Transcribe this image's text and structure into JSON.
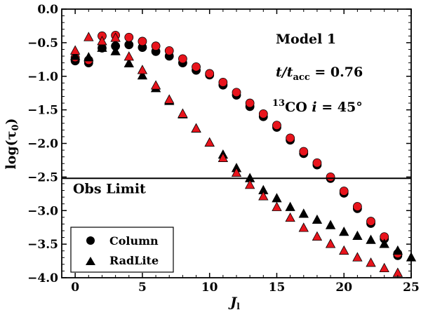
{
  "chart_data": {
    "type": "scatter",
    "xlabel": "J",
    "xlabel_sub": "l",
    "ylabel": "log(τ",
    "ylabel_sub": "0",
    "ylabel_end": ")",
    "xlim": [
      -1,
      25
    ],
    "ylim": [
      -4.0,
      0.0
    ],
    "xticks": [
      "0",
      "5",
      "10",
      "15",
      "20",
      "25"
    ],
    "xtick_values": [
      0,
      5,
      10,
      15,
      20,
      25
    ],
    "yticks": [
      "0.0",
      "−0.5",
      "−1.0",
      "−1.5",
      "−2.0",
      "−2.5",
      "−3.0",
      "−3.5",
      "−4.0"
    ],
    "ytick_values": [
      0.0,
      -0.5,
      -1.0,
      -1.5,
      -2.0,
      -2.5,
      -3.0,
      -3.5,
      -4.0
    ],
    "annotations": {
      "model": "Model 1",
      "time_t": "t/t",
      "time_sub": "acc",
      "time_val": " = 0.76",
      "isotope_sup": "13",
      "isotope": "CO ",
      "incl_i": "i",
      "incl_val": " = 45°"
    },
    "hline": {
      "y": -2.52,
      "label": "Obs Limit"
    },
    "legend": {
      "position": "bottom-left",
      "entries": [
        "Column",
        "RadLite"
      ]
    },
    "colors": {
      "black": "#000000",
      "red": "#e8141c"
    },
    "series": [
      {
        "name": "Column (black)",
        "marker": "circle",
        "color": "black",
        "x": [
          0,
          1,
          2,
          3,
          4,
          5,
          6,
          7,
          8,
          9,
          10,
          11,
          12,
          13,
          14,
          15,
          16,
          17,
          18,
          19,
          20,
          21,
          22,
          23,
          24
        ],
        "y": [
          -0.77,
          -0.8,
          -0.58,
          -0.55,
          -0.53,
          -0.57,
          -0.63,
          -0.7,
          -0.8,
          -0.91,
          -0.98,
          -1.13,
          -1.28,
          -1.45,
          -1.6,
          -1.76,
          -1.95,
          -2.15,
          -2.32,
          -2.52,
          -2.74,
          -2.97,
          -3.19,
          -3.42,
          -3.67
        ]
      },
      {
        "name": "Column (red)",
        "marker": "circle",
        "color": "red",
        "x": [
          0,
          1,
          2,
          3,
          4,
          5,
          6,
          7,
          8,
          9,
          10,
          11,
          12,
          13,
          14,
          15,
          16,
          17,
          18,
          19,
          20,
          21,
          22,
          23,
          24
        ],
        "y": [
          -0.72,
          -0.76,
          -0.4,
          -0.39,
          -0.42,
          -0.48,
          -0.55,
          -0.62,
          -0.74,
          -0.86,
          -0.96,
          -1.09,
          -1.24,
          -1.4,
          -1.56,
          -1.73,
          -1.92,
          -2.12,
          -2.29,
          -2.5,
          -2.71,
          -2.94,
          -3.16,
          -3.39,
          -3.64
        ]
      },
      {
        "name": "RadLite (black)",
        "marker": "triangle",
        "color": "black",
        "x": [
          0,
          1,
          2,
          3,
          4,
          5,
          6,
          7,
          8,
          9,
          10,
          11,
          12,
          13,
          14,
          15,
          16,
          17,
          18,
          19,
          20,
          21,
          22,
          23,
          24,
          25
        ],
        "y": [
          -0.7,
          -0.72,
          -0.58,
          -0.63,
          -0.81,
          -0.99,
          -1.18,
          -1.37,
          -1.57,
          -1.78,
          -1.99,
          -2.17,
          -2.37,
          -2.52,
          -2.7,
          -2.82,
          -2.95,
          -3.05,
          -3.14,
          -3.22,
          -3.32,
          -3.38,
          -3.44,
          -3.5,
          -3.6,
          -3.7
        ]
      },
      {
        "name": "RadLite (red)",
        "marker": "triangle",
        "color": "red",
        "x": [
          0,
          1,
          2,
          3,
          4,
          5,
          6,
          7,
          8,
          9,
          10,
          11,
          12,
          13,
          14,
          15,
          16,
          17,
          18,
          19,
          20,
          21,
          22,
          23,
          24
        ],
        "y": [
          -0.62,
          -0.42,
          -0.48,
          -0.43,
          -0.71,
          -0.91,
          -1.14,
          -1.35,
          -1.56,
          -1.78,
          -1.99,
          -2.22,
          -2.44,
          -2.62,
          -2.79,
          -2.95,
          -3.11,
          -3.26,
          -3.39,
          -3.5,
          -3.6,
          -3.7,
          -3.78,
          -3.86,
          -3.93
        ]
      }
    ]
  }
}
